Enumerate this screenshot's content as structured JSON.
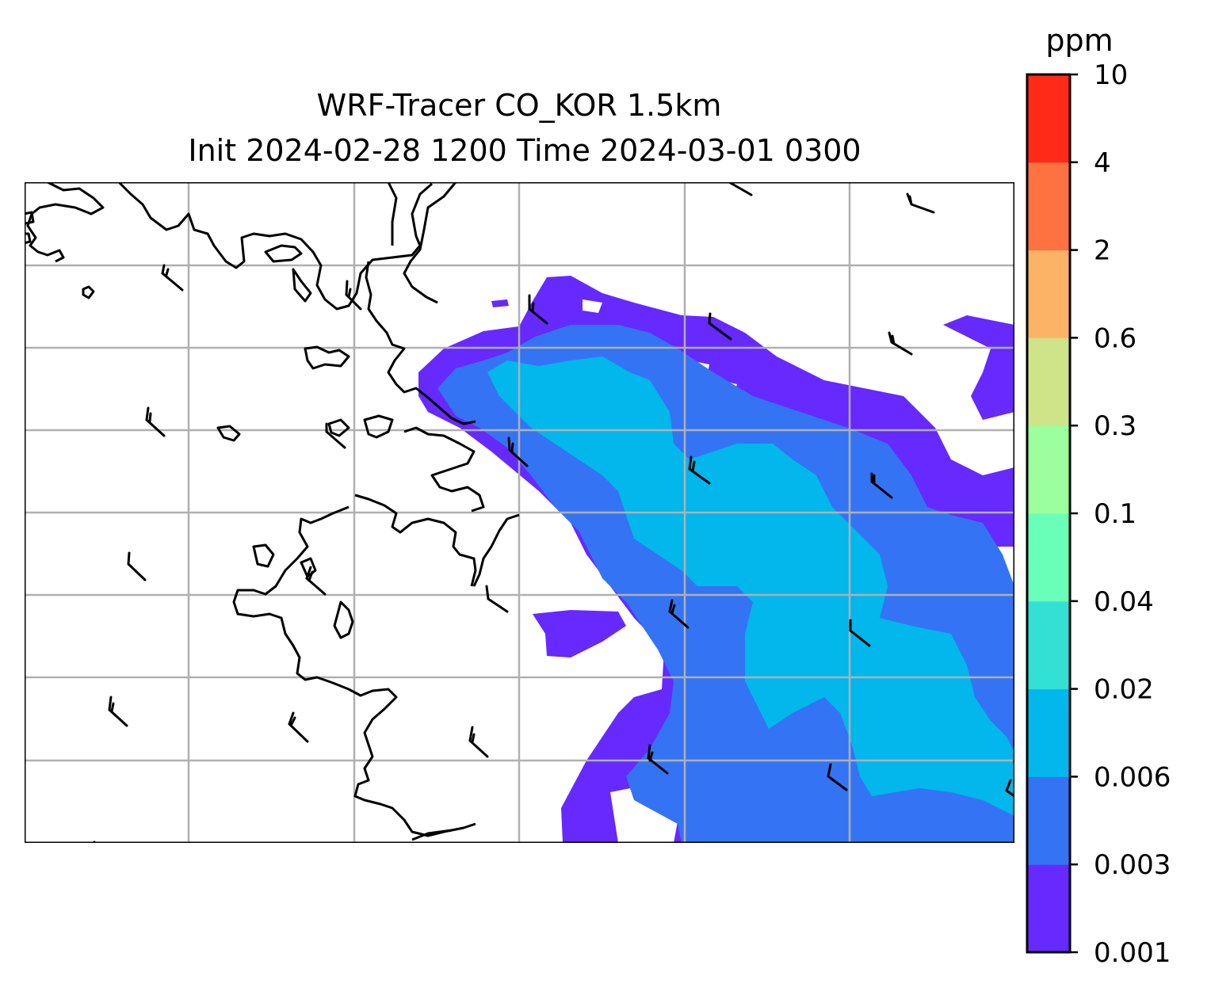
{
  "title": {
    "line1": "WRF-Tracer CO_KOR 1.5km",
    "line2": "Init 2024-02-28 1200 Time 2024-03-01 0300"
  },
  "colorbar": {
    "unit": "ppm",
    "levels": [
      "0.001",
      "0.003",
      "0.006",
      "0.02",
      "0.04",
      "0.1",
      "0.3",
      "0.6",
      "2",
      "4",
      "10"
    ],
    "colors": [
      "#6629fe",
      "#3474f4",
      "#02b7ec",
      "#33e0d4",
      "#6affb9",
      "#9cfe9c",
      "#cfe389",
      "#fdb366",
      "#fe7140",
      "#ff2a18"
    ]
  },
  "map": {
    "plume_levels_shown": [
      "0.001",
      "0.003",
      "0.006"
    ],
    "gridlines": true,
    "wind_barbs": true,
    "coastlines": true
  }
}
